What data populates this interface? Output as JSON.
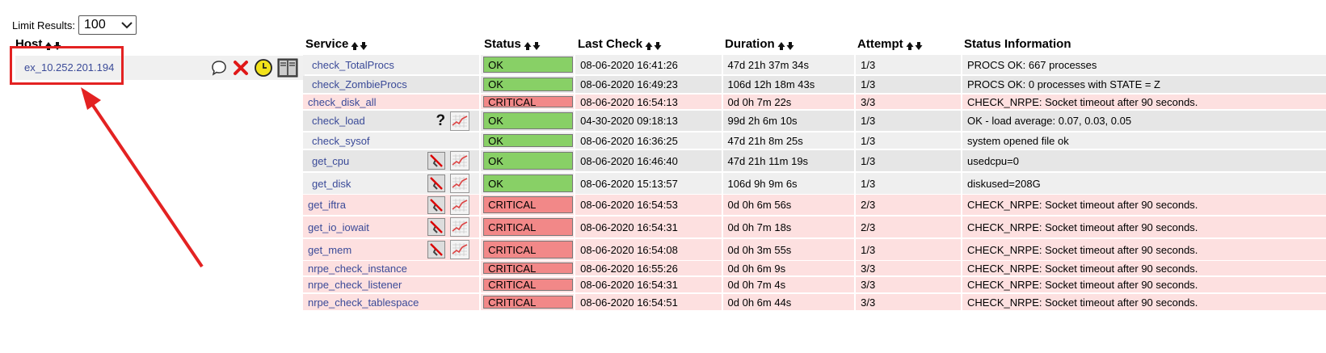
{
  "limit": {
    "label": "Limit Results:",
    "value": "100"
  },
  "headers": {
    "host": "Host",
    "service": "Service",
    "status": "Status",
    "last_check": "Last Check",
    "duration": "Duration",
    "attempt": "Attempt",
    "info": "Status Information"
  },
  "host": {
    "name": "ex_10.252.201.194"
  },
  "colors": {
    "ok": "#88d066",
    "critical": "#f28888",
    "critical_row": "#fde0e0",
    "link": "#3a4a98",
    "highlight": "#e32222"
  },
  "services": [
    {
      "name": "check_TotalProcs",
      "status": "OK",
      "last_check": "08-06-2020 16:41:26",
      "duration": "47d 21h 37m 34s",
      "attempt": "1/3",
      "info": "PROCS OK: 667 processes",
      "icons": []
    },
    {
      "name": "check_ZombieProcs",
      "status": "OK",
      "last_check": "08-06-2020 16:49:23",
      "duration": "106d 12h 18m 43s",
      "attempt": "1/3",
      "info": "PROCS OK: 0 processes with STATE = Z",
      "icons": []
    },
    {
      "name": "check_disk_all",
      "status": "CRITICAL",
      "last_check": "08-06-2020 16:54:13",
      "duration": "0d 0h 7m 22s",
      "attempt": "3/3",
      "info": "CHECK_NRPE: Socket timeout after 90 seconds.",
      "icons": []
    },
    {
      "name": "check_load",
      "status": "OK",
      "last_check": "04-30-2020 09:18:13",
      "duration": "99d 2h 6m 10s",
      "attempt": "1/3",
      "info": "OK - load average: 0.07, 0.03, 0.05",
      "icons": [
        "question-icon",
        "graph-icon"
      ]
    },
    {
      "name": "check_sysof",
      "status": "OK",
      "last_check": "08-06-2020 16:36:25",
      "duration": "47d 21h 8m 25s",
      "attempt": "1/3",
      "info": "system opened file ok",
      "icons": []
    },
    {
      "name": "get_cpu",
      "status": "OK",
      "last_check": "08-06-2020 16:46:40",
      "duration": "47d 21h 11m 19s",
      "attempt": "1/3",
      "info": "usedcpu=0",
      "icons": [
        "notifications-disabled-icon",
        "graph-icon"
      ]
    },
    {
      "name": "get_disk",
      "status": "OK",
      "last_check": "08-06-2020 15:13:57",
      "duration": "106d 9h 9m 6s",
      "attempt": "1/3",
      "info": "diskused=208G",
      "icons": [
        "notifications-disabled-icon",
        "graph-icon"
      ]
    },
    {
      "name": "get_iftra",
      "status": "CRITICAL",
      "last_check": "08-06-2020 16:54:53",
      "duration": "0d 0h 6m 56s",
      "attempt": "2/3",
      "info": "CHECK_NRPE: Socket timeout after 90 seconds.",
      "icons": [
        "notifications-disabled-icon",
        "graph-icon"
      ]
    },
    {
      "name": "get_io_iowait",
      "status": "CRITICAL",
      "last_check": "08-06-2020 16:54:31",
      "duration": "0d 0h 7m 18s",
      "attempt": "2/3",
      "info": "CHECK_NRPE: Socket timeout after 90 seconds.",
      "icons": [
        "notifications-disabled-icon",
        "graph-icon"
      ]
    },
    {
      "name": "get_mem",
      "status": "CRITICAL",
      "last_check": "08-06-2020 16:54:08",
      "duration": "0d 0h 3m 55s",
      "attempt": "1/3",
      "info": "CHECK_NRPE: Socket timeout after 90 seconds.",
      "icons": [
        "notifications-disabled-icon",
        "graph-icon"
      ]
    },
    {
      "name": "nrpe_check_instance",
      "status": "CRITICAL",
      "last_check": "08-06-2020 16:55:26",
      "duration": "0d 0h 6m 9s",
      "attempt": "3/3",
      "info": "CHECK_NRPE: Socket timeout after 90 seconds.",
      "icons": []
    },
    {
      "name": "nrpe_check_listener",
      "status": "CRITICAL",
      "last_check": "08-06-2020 16:54:31",
      "duration": "0d 0h 7m 4s",
      "attempt": "3/3",
      "info": "CHECK_NRPE: Socket timeout after 90 seconds.",
      "icons": []
    },
    {
      "name": "nrpe_check_tablespace",
      "status": "CRITICAL",
      "last_check": "08-06-2020 16:54:51",
      "duration": "0d 0h 6m 44s",
      "attempt": "3/3",
      "info": "CHECK_NRPE: Socket timeout after 90 seconds.",
      "icons": []
    }
  ]
}
